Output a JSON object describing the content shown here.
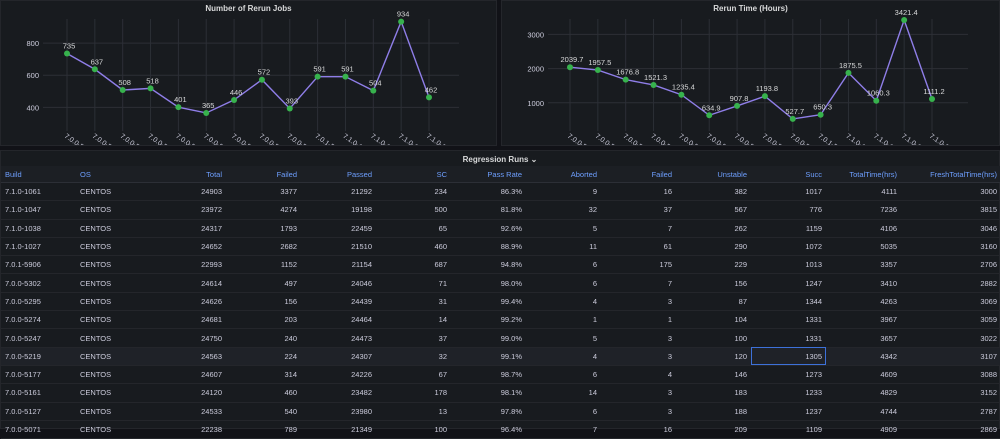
{
  "panel1": {
    "title": "Number of Rerun Jobs",
    "chart_data": {
      "type": "line",
      "categories": [
        "7.0.0-5071",
        "7.0.0-5127",
        "7.0.0-5161",
        "7.0.0-5177",
        "7.0.0-5219",
        "7.0.0-5247",
        "7.0.0-5274",
        "7.0.0-5295",
        "7.0.0-5302",
        "7.0.1-5906",
        "7.1.0-1027",
        "7.1.0-1038",
        "7.1.0-1047",
        "7.1.0-1061"
      ],
      "values": [
        735,
        637,
        508,
        518,
        401,
        365,
        446,
        572,
        393,
        591,
        591,
        504,
        934,
        462
      ],
      "value_labels": [
        "735",
        "637",
        "508",
        "518",
        "401",
        "365",
        "446",
        "572",
        "393",
        "591",
        "591",
        "504",
        "934",
        "462"
      ],
      "yticks": [
        "400",
        "600",
        "800"
      ],
      "ylim": [
        290,
        950
      ],
      "line_color": "#8f7ee8",
      "point_color": "#37b24d"
    }
  },
  "panel2": {
    "title": "Rerun Time (Hours)",
    "chart_data": {
      "type": "line",
      "categories": [
        "7.0.0-5071",
        "7.0.0-5127",
        "7.0.0-5161",
        "7.0.0-5177",
        "7.0.0-5219",
        "7.0.0-5247",
        "7.0.0-5274",
        "7.0.0-5295",
        "7.0.0-5302",
        "7.0.1-5906",
        "7.1.0-1027",
        "7.1.0-1038",
        "7.1.0-1047",
        "7.1.0-1061"
      ],
      "values": [
        2039.7,
        1957.5,
        1676.8,
        1521.3,
        1235.4,
        634.9,
        907.8,
        1193.8,
        527.7,
        650.3,
        1875.5,
        1060.3,
        3421.4,
        1111.2
      ],
      "value_labels": [
        "2039.7",
        "1957.5",
        "1676.8",
        "1521.3",
        "1235.4",
        "634.9",
        "907.8",
        "1193.8",
        "527.7",
        "650.3",
        "1875.5",
        "1060.3",
        "3421.4",
        "1111.2"
      ],
      "yticks": [
        "1000",
        "2000",
        "3000"
      ],
      "ylim": [
        350,
        3450
      ],
      "line_color": "#8f7ee8",
      "point_color": "#37b24d"
    }
  },
  "table": {
    "title": "Regression Runs",
    "caret": "⌄",
    "columns": [
      "Build",
      "OS",
      "Total",
      "Failed",
      "Passed",
      "SC",
      "Pass Rate",
      "Aborted",
      "Failed",
      "Unstable",
      "Succ",
      "TotalTime(hrs)",
      "FreshTotalTime(hrs)"
    ],
    "rows": [
      [
        "7.1.0-1061",
        "CENTOS",
        "24903",
        "3377",
        "21292",
        "234",
        "86.3%",
        "9",
        "16",
        "382",
        "1017",
        "4111",
        "3000"
      ],
      [
        "7.1.0-1047",
        "CENTOS",
        "23972",
        "4274",
        "19198",
        "500",
        "81.8%",
        "32",
        "37",
        "567",
        "776",
        "7236",
        "3815"
      ],
      [
        "7.1.0-1038",
        "CENTOS",
        "24317",
        "1793",
        "22459",
        "65",
        "92.6%",
        "5",
        "7",
        "262",
        "1159",
        "4106",
        "3046"
      ],
      [
        "7.1.0-1027",
        "CENTOS",
        "24652",
        "2682",
        "21510",
        "460",
        "88.9%",
        "11",
        "61",
        "290",
        "1072",
        "5035",
        "3160"
      ],
      [
        "7.0.1-5906",
        "CENTOS",
        "22993",
        "1152",
        "21154",
        "687",
        "94.8%",
        "6",
        "175",
        "229",
        "1013",
        "3357",
        "2706"
      ],
      [
        "7.0.0-5302",
        "CENTOS",
        "24614",
        "497",
        "24046",
        "71",
        "98.0%",
        "6",
        "7",
        "156",
        "1247",
        "3410",
        "2882"
      ],
      [
        "7.0.0-5295",
        "CENTOS",
        "24626",
        "156",
        "24439",
        "31",
        "99.4%",
        "4",
        "3",
        "87",
        "1344",
        "4263",
        "3069"
      ],
      [
        "7.0.0-5274",
        "CENTOS",
        "24681",
        "203",
        "24464",
        "14",
        "99.2%",
        "1",
        "1",
        "104",
        "1331",
        "3967",
        "3059"
      ],
      [
        "7.0.0-5247",
        "CENTOS",
        "24750",
        "240",
        "24473",
        "37",
        "99.0%",
        "5",
        "3",
        "100",
        "1331",
        "3657",
        "3022"
      ],
      [
        "7.0.0-5219",
        "CENTOS",
        "24563",
        "224",
        "24307",
        "32",
        "99.1%",
        "4",
        "3",
        "120",
        "1305",
        "4342",
        "3107"
      ],
      [
        "7.0.0-5177",
        "CENTOS",
        "24607",
        "314",
        "24226",
        "67",
        "98.7%",
        "6",
        "4",
        "146",
        "1273",
        "4609",
        "3088"
      ],
      [
        "7.0.0-5161",
        "CENTOS",
        "24120",
        "460",
        "23482",
        "178",
        "98.1%",
        "14",
        "3",
        "183",
        "1233",
        "4829",
        "3152"
      ],
      [
        "7.0.0-5127",
        "CENTOS",
        "24533",
        "540",
        "23980",
        "13",
        "97.8%",
        "6",
        "3",
        "188",
        "1237",
        "4744",
        "2787"
      ],
      [
        "7.0.0-5071",
        "CENTOS",
        "22238",
        "789",
        "21349",
        "100",
        "96.4%",
        "7",
        "16",
        "209",
        "1109",
        "4909",
        "2869"
      ]
    ]
  }
}
